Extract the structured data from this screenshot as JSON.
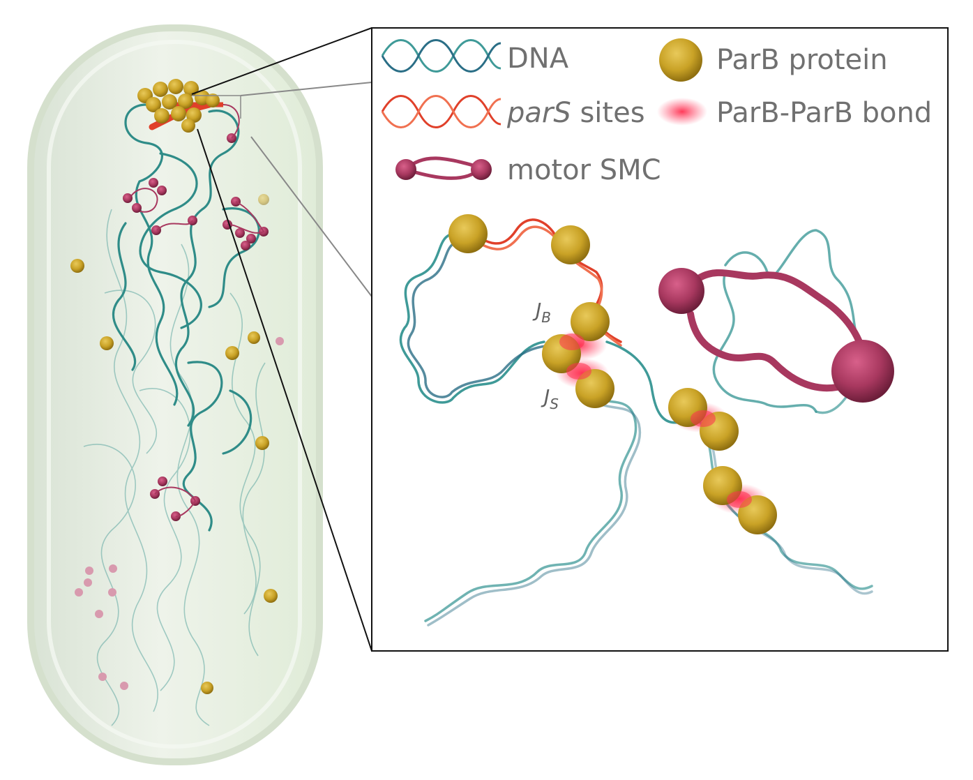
{
  "legend": {
    "dna": "DNA",
    "pars_italic": "parS",
    "pars_rest": " sites",
    "smc": "motor SMC",
    "parb_protein": "ParB protein",
    "parb_bond": "ParB-ParB bond"
  },
  "annotations": {
    "jb_main": "J",
    "jb_sub": "B",
    "js_main": "J",
    "js_sub": "S"
  },
  "colors": {
    "dna": "#3f9a98",
    "pars": "#e0402a",
    "parb": "#c9a226",
    "smc": "#a8385f",
    "bond": "#f0506a",
    "cell_fill": "#e6efe0",
    "cell_edge": "#cfdcc6"
  }
}
